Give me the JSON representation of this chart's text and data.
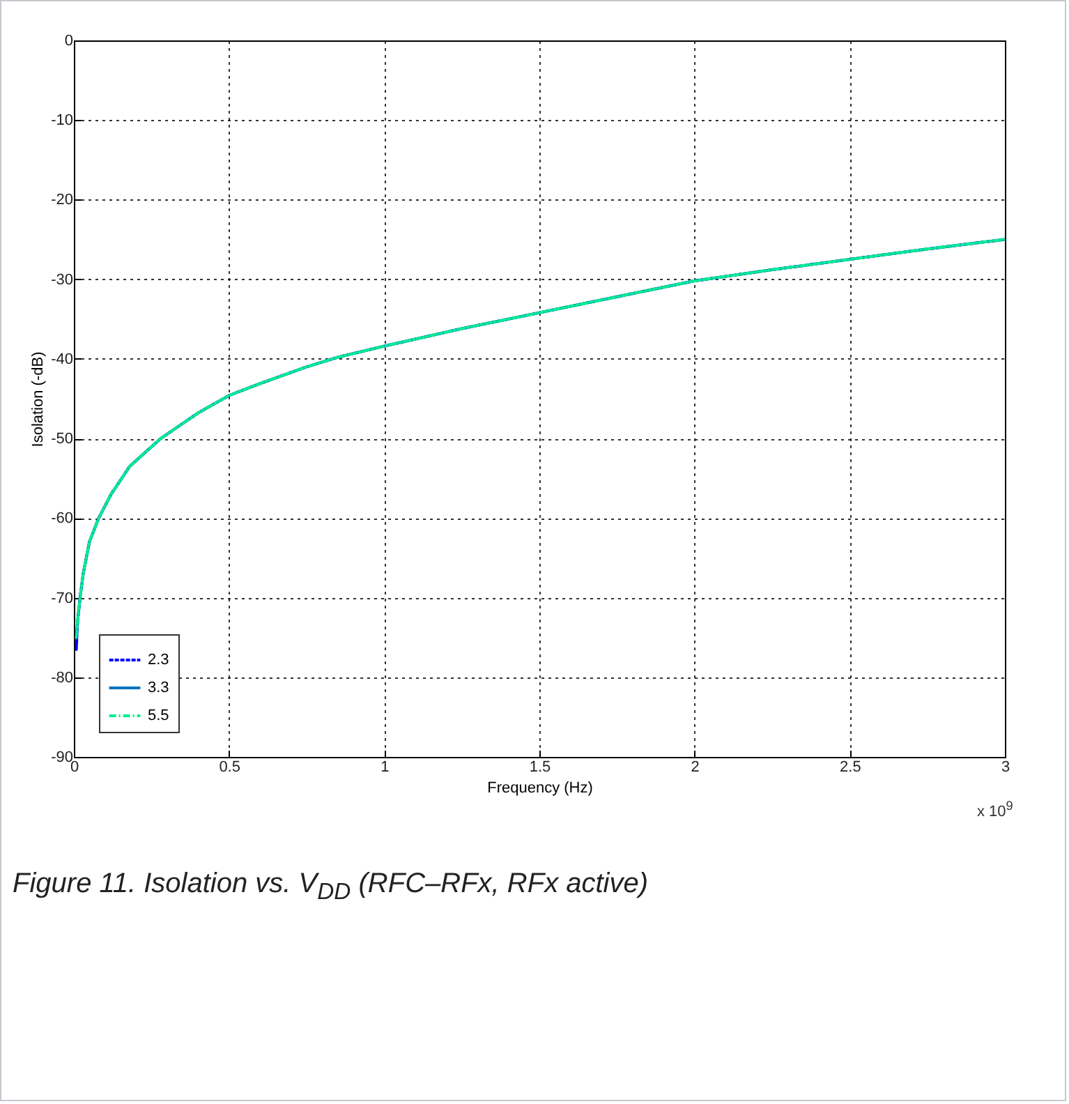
{
  "chart_data": {
    "type": "line",
    "xlabel": "Frequency (Hz)",
    "ylabel": "Isolation (-dB)",
    "x": [
      0.008,
      0.012,
      0.02,
      0.03,
      0.05,
      0.08,
      0.12,
      0.18,
      0.28,
      0.4,
      0.5,
      0.6,
      0.75,
      0.85,
      1.0,
      1.25,
      1.5,
      1.75,
      2.0,
      2.25,
      2.5,
      2.75,
      3.0
    ],
    "series": [
      {
        "name": "2.3",
        "color": "#0000ff",
        "line_style": "dashed",
        "values": [
          -76.5,
          -73,
          -70,
          -67,
          -63,
          -60,
          -57,
          -53.5,
          -50,
          -46.8,
          -44.6,
          -43.1,
          -41,
          -39.8,
          -38.4,
          -36.2,
          -34.2,
          -32.2,
          -30.2,
          -28.8,
          -27.5,
          -26.2,
          -25.0
        ]
      },
      {
        "name": "3.3",
        "color": "#0072bd",
        "line_style": "solid",
        "values": [
          -75,
          -73,
          -70,
          -67,
          -63,
          -60,
          -57,
          -53.5,
          -50,
          -46.8,
          -44.6,
          -43.1,
          -41,
          -39.8,
          -38.4,
          -36.2,
          -34.2,
          -32.2,
          -30.2,
          -28.8,
          -27.5,
          -26.2,
          -25.0
        ]
      },
      {
        "name": "5.5",
        "color": "#00ee90",
        "line_style": "dashdot",
        "values": [
          -75,
          -73,
          -70,
          -67,
          -63,
          -60,
          -57,
          -53.5,
          -50,
          -46.8,
          -44.6,
          -43.1,
          -41,
          -39.8,
          -38.4,
          -36.2,
          -34.2,
          -32.2,
          -30.2,
          -28.8,
          -27.5,
          -26.2,
          -25.0
        ]
      }
    ],
    "xlim": [
      0,
      3
    ],
    "xticks": [
      0,
      0.5,
      1,
      1.5,
      2,
      2.5,
      3
    ],
    "ylim": [
      -90,
      0
    ],
    "yticks": [
      -90,
      -80,
      -70,
      -60,
      -50,
      -40,
      -30,
      -20,
      -10,
      0
    ],
    "grid": true,
    "legend": "bottom left",
    "annotations": [
      "x 10$^{9}$",
      "Figure 11. Isolation vs. V$_{DD}$ (RFC–RFx, RFx active)"
    ]
  }
}
